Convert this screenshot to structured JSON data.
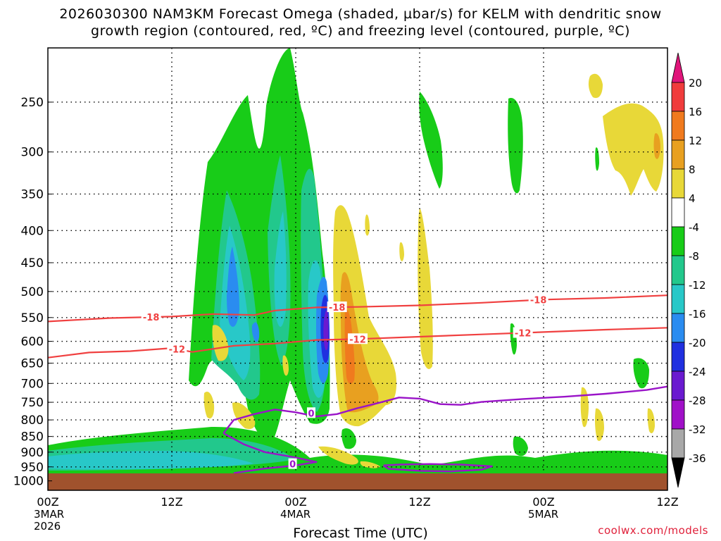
{
  "title": {
    "line1": "2026030300 NAM3KM Forecast Omega (shaded, µbar/s) for KELM with dendritic snow",
    "line2": "growth region (contoured, red, ºC) and freezing level (contoured, purple, ºC)"
  },
  "credit": "coolwx.com/models",
  "chart_data": {
    "type": "heatmap",
    "xlabel": "Forecast Time (UTC)",
    "ylabel": "",
    "x_ticks": [
      {
        "hour": 0,
        "label": "00Z",
        "date": "3MAR",
        "year": "2026"
      },
      {
        "hour": 12,
        "label": "12Z"
      },
      {
        "hour": 24,
        "label": "00Z",
        "date": "4MAR"
      },
      {
        "hour": 36,
        "label": "12Z"
      },
      {
        "hour": 48,
        "label": "00Z",
        "date": "5MAR"
      },
      {
        "hour": 60,
        "label": "12Z"
      }
    ],
    "xlim": [
      0,
      60
    ],
    "ylim": [
      1035,
      205
    ],
    "y_scale": "log",
    "y_ticks": [
      250,
      300,
      350,
      400,
      450,
      500,
      550,
      600,
      650,
      700,
      750,
      800,
      850,
      900,
      950,
      1000
    ],
    "grid": true,
    "colorbar": {
      "levels": [
        20,
        16,
        12,
        8,
        4,
        -4,
        -8,
        -12,
        -16,
        -20,
        -24,
        -28,
        -32,
        -36
      ],
      "colors": {
        "gt20": "#e0157a",
        "16_20": "#f03c3c",
        "12_16": "#f07a1e",
        "8_12": "#e8a020",
        "4_8": "#e8d838",
        "-4_4": "#ffffff",
        "-8_-4": "#18cc18",
        "-12_-8": "#22c88c",
        "-16_-12": "#28c8c8",
        "-20_-16": "#2a8cf0",
        "-24_-20": "#2030e0",
        "-28_-24": "#6a1ad0",
        "-32_-28": "#a010c8",
        "-36_-32": "#a8a8a8",
        "lt-36": "#000000"
      }
    },
    "contours": {
      "dendritic": {
        "color": "#f04040",
        "levels": [
          -18,
          -12
        ],
        "lines": [
          {
            "value": -18,
            "label": "-18",
            "points": [
              [
                0,
                558
              ],
              [
                6,
                551
              ],
              [
                12,
                548
              ],
              [
                16,
                543
              ],
              [
                20,
                545
              ],
              [
                22,
                536
              ],
              [
                24,
                533
              ],
              [
                26,
                530
              ],
              [
                30,
                529
              ],
              [
                36,
                526
              ],
              [
                42,
                521
              ],
              [
                48,
                515
              ],
              [
                54,
                512
              ],
              [
                60,
                507
              ]
            ]
          },
          {
            "value": -12,
            "label": "-12",
            "points": [
              [
                0,
                637
              ],
              [
                4,
                625
              ],
              [
                8,
                622
              ],
              [
                12,
                615
              ],
              [
                14,
                624
              ],
              [
                18,
                610
              ],
              [
                22,
                605
              ],
              [
                24,
                601
              ],
              [
                26,
                597
              ],
              [
                30,
                595
              ],
              [
                36,
                590
              ],
              [
                42,
                585
              ],
              [
                48,
                580
              ],
              [
                54,
                575
              ],
              [
                60,
                571
              ]
            ]
          }
        ]
      },
      "freezing": {
        "color": "#9a14c8",
        "levels": [
          0
        ],
        "lines": [
          {
            "value": 0,
            "label": "0",
            "points": [
              [
                17,
                840
              ],
              [
                18,
                800
              ],
              [
                20,
                783
              ],
              [
                22,
                770
              ],
              [
                24,
                778
              ],
              [
                26,
                790
              ],
              [
                28,
                783
              ],
              [
                30,
                766
              ],
              [
                32,
                752
              ],
              [
                34,
                737
              ],
              [
                36,
                740
              ],
              [
                38,
                755
              ],
              [
                40,
                757
              ],
              [
                42,
                749
              ],
              [
                46,
                741
              ],
              [
                50,
                735
              ],
              [
                54,
                727
              ],
              [
                56,
                722
              ],
              [
                58,
                717
              ],
              [
                60,
                708
              ]
            ]
          },
          {
            "value": 0,
            "label": "0",
            "points": [
              [
                17,
                840
              ],
              [
                19,
                875
              ],
              [
                21,
                900
              ],
              [
                24,
                918
              ],
              [
                26,
                933
              ],
              [
                24,
                945
              ],
              [
                21,
                956
              ],
              [
                18,
                972
              ]
            ]
          },
          {
            "value": 0,
            "label": "0",
            "points": [
              [
                32.5,
                945
              ],
              [
                34,
                942
              ],
              [
                37,
                940
              ],
              [
                40,
                942
              ],
              [
                43,
                948
              ],
              [
                42,
                960
              ],
              [
                39,
                966
              ],
              [
                36,
                964
              ],
              [
                33,
                957
              ],
              [
                32.5,
                945
              ]
            ]
          }
        ]
      }
    }
  }
}
